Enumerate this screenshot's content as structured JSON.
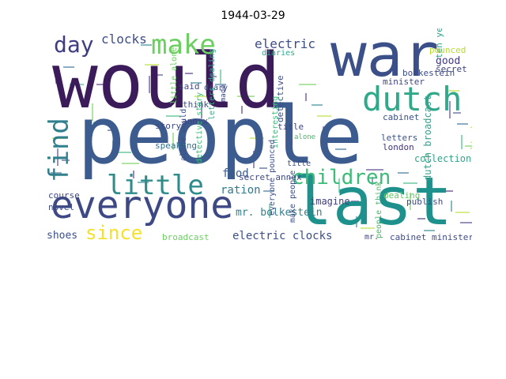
{
  "title": "1944-03-29",
  "chart_data": {
    "type": "wordcloud",
    "title": "1944-03-29",
    "words": [
      {
        "text": "would",
        "color": "#3b1b5a"
      },
      {
        "text": "people",
        "color": "#3c5b8f"
      },
      {
        "text": "war",
        "color": "#3b4f88"
      },
      {
        "text": "last",
        "color": "#1f918c"
      },
      {
        "text": "everyone",
        "color": "#3d4985"
      },
      {
        "text": "dutch",
        "color": "#2fa98a"
      },
      {
        "text": "make",
        "color": "#6ccf62"
      },
      {
        "text": "little",
        "color": "#2e8c8a"
      },
      {
        "text": "find",
        "color": "#2f7f8c"
      },
      {
        "text": "children",
        "color": "#3cbc79"
      },
      {
        "text": "day",
        "color": "#3f3d82"
      },
      {
        "text": "since",
        "color": "#f4e12a"
      },
      {
        "text": "clocks",
        "color": "#3f4c86"
      },
      {
        "text": "electric",
        "color": "#3e4c87"
      },
      {
        "text": "dutch broadcast",
        "color": "#3f9e8b"
      },
      {
        "text": "ration",
        "color": "#2d7a8b"
      },
      {
        "text": "food",
        "color": "#3a5c8c"
      },
      {
        "text": "electric clocks",
        "color": "#3e4f87"
      },
      {
        "text": "mr. bolkestein",
        "color": "#357f8c"
      },
      {
        "text": "shoes",
        "color": "#3b4f88"
      },
      {
        "text": "good",
        "color": "#3f3a80"
      },
      {
        "text": "collection",
        "color": "#36a38a"
      },
      {
        "text": "imagine",
        "color": "#3d3e81"
      },
      {
        "text": "bolkestein",
        "color": "#3e4c86"
      },
      {
        "text": "ten years",
        "color": "#2ea387"
      },
      {
        "text": "pounced",
        "color": "#b5de2b"
      },
      {
        "text": "secret",
        "color": "#3e4381"
      },
      {
        "text": "minister",
        "color": "#3e4783"
      },
      {
        "text": "london",
        "color": "#41347c"
      },
      {
        "text": "letters",
        "color": "#3b5289"
      },
      {
        "text": "dealing",
        "color": "#5ec962"
      },
      {
        "text": "cabinet",
        "color": "#3b5189"
      },
      {
        "text": "title",
        "color": "#3e4783"
      },
      {
        "text": "story",
        "color": "#3e4983"
      },
      {
        "text": "speaking",
        "color": "#2f6f8e"
      },
      {
        "text": "think",
        "color": "#3e4f88"
      },
      {
        "text": "said",
        "color": "#40487f"
      },
      {
        "text": "annex",
        "color": "#3d3e82"
      },
      {
        "text": "secret annex",
        "color": "#3f4a86"
      },
      {
        "text": "broadcast",
        "color": "#6ccf62"
      },
      {
        "text": "novel",
        "color": "#3e4c86"
      },
      {
        "text": "course",
        "color": "#3e4883"
      },
      {
        "text": "publish",
        "color": "#3e4983"
      },
      {
        "text": "cabinet minister",
        "color": "#3e4c86"
      },
      {
        "text": "detective",
        "color": "#3c4f88"
      },
      {
        "text": "interesting",
        "color": "#3cb97a"
      },
      {
        "text": "diaries",
        "color": "#2fa98a"
      },
      {
        "text": "diary",
        "color": "#3e4f88"
      },
      {
        "text": "letters dealing",
        "color": "#3ea98a"
      },
      {
        "text": "make people",
        "color": "#3e4f88"
      },
      {
        "text": "people think",
        "color": "#4fb46c"
      },
      {
        "text": "everyone pounced",
        "color": "#3e4f88"
      },
      {
        "text": "detective story",
        "color": "#3cba7a"
      },
      {
        "text": "alone would",
        "color": "#3e4f88"
      },
      {
        "text": "little alone",
        "color": "#6ccf62"
      },
      {
        "text": "would make",
        "color": "#b5de2b"
      },
      {
        "text": "made",
        "color": "#3e4883"
      },
      {
        "text": "alone",
        "color": "#4fb46c"
      },
      {
        "text": "mr.",
        "color": "#3e4883"
      },
      {
        "text": "title",
        "color": "#3e4c86"
      }
    ]
  }
}
